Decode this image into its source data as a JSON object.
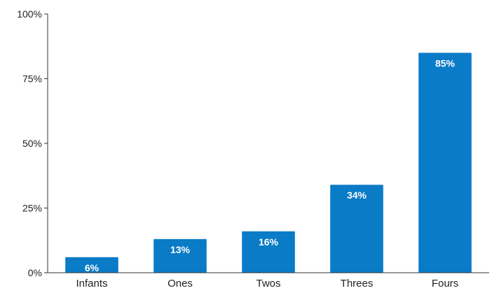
{
  "chart_data": {
    "type": "bar",
    "title": "",
    "xlabel": "",
    "ylabel": "",
    "categories": [
      "Infants",
      "Ones",
      "Twos",
      "Threes",
      "Fours"
    ],
    "values": [
      6,
      13,
      16,
      34,
      85
    ],
    "data_labels": [
      "6%",
      "13%",
      "16%",
      "34%",
      "85%"
    ],
    "ylim": [
      0,
      100
    ],
    "yticks": [
      0,
      25,
      50,
      75,
      100
    ],
    "ytick_labels": [
      "0%",
      "25%",
      "50%",
      "75%",
      "100%"
    ],
    "grid": false,
    "legend": "none",
    "bar_color": "#0A7BC6",
    "axis_color": "#333333"
  }
}
